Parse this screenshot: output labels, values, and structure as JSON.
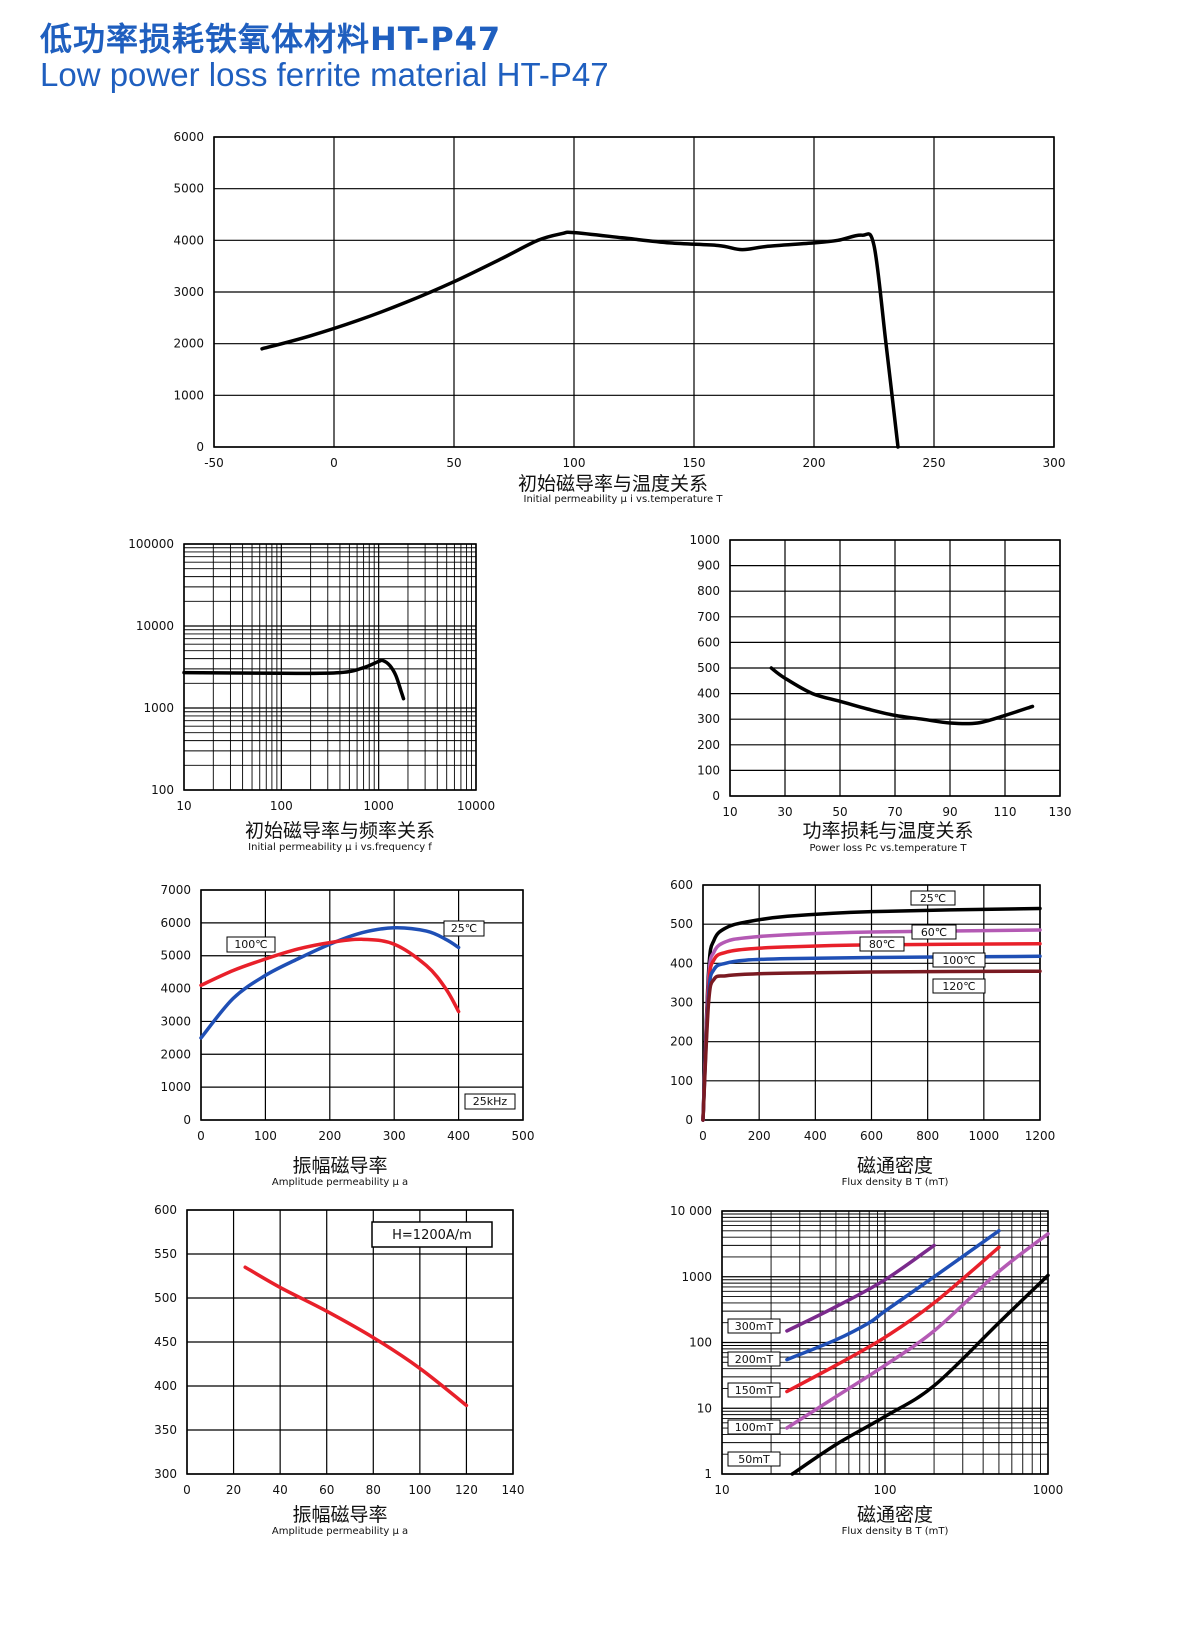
{
  "header": {
    "title_cn": "低功率损耗铁氧体材料HT-P47",
    "title_en": "Low power loss ferrite material HT-P47"
  },
  "colors": {
    "title": "#1f5fbf",
    "black": "#000000",
    "red": "#e8202a",
    "blue": "#1f4fb5",
    "purple": "#7a2a8c",
    "magenta": "#b45ab4",
    "darkred": "#7a1a22"
  },
  "chart_data": [
    {
      "id": "c1",
      "type": "line",
      "ylog": false,
      "xlog": false,
      "title_cn": "初始磁导率与温度关系",
      "title_en": "Initial permeability  μ i vs.temperature T",
      "xlim": [
        -50,
        300
      ],
      "ylim": [
        0,
        6000
      ],
      "xticks": [
        -50,
        0,
        50,
        100,
        150,
        200,
        250,
        300
      ],
      "xtick_labels": [
        "-50",
        "0",
        "50",
        "100",
        "150",
        "200",
        "250",
        "300"
      ],
      "yticks": [
        0,
        1000,
        2000,
        3000,
        4000,
        5000,
        6000
      ],
      "ytick_labels": [
        "0",
        "1000",
        "2000",
        "3000",
        "4000",
        "5000",
        "6000"
      ],
      "series": [
        {
          "name": "μi",
          "color": "#000000",
          "points": [
            [
              -30,
              1900
            ],
            [
              -10,
              2150
            ],
            [
              10,
              2450
            ],
            [
              30,
              2800
            ],
            [
              50,
              3200
            ],
            [
              70,
              3650
            ],
            [
              85,
              4000
            ],
            [
              95,
              4130
            ],
            [
              100,
              4150
            ],
            [
              120,
              4050
            ],
            [
              140,
              3950
            ],
            [
              160,
              3900
            ],
            [
              170,
              3820
            ],
            [
              180,
              3880
            ],
            [
              200,
              3950
            ],
            [
              210,
              4000
            ],
            [
              220,
              4100
            ],
            [
              225,
              3900
            ],
            [
              230,
              2000
            ],
            [
              235,
              0
            ]
          ]
        }
      ]
    },
    {
      "id": "c2",
      "type": "line",
      "ylog": true,
      "xlog": true,
      "title_cn": "初始磁导率与频率关系",
      "title_en": "Initial permeability  μ i vs.frequency f",
      "xlim": [
        10,
        10000
      ],
      "ylim": [
        100,
        100000
      ],
      "xticks": [
        10,
        100,
        1000,
        10000
      ],
      "xtick_labels": [
        "10",
        "100",
        "1000",
        "10000"
      ],
      "yticks": [
        100,
        1000,
        10000,
        100000
      ],
      "ytick_labels": [
        "100",
        "1000",
        "10000",
        "100000"
      ],
      "series": [
        {
          "name": "μi",
          "color": "#000000",
          "points": [
            [
              10,
              2700
            ],
            [
              100,
              2650
            ],
            [
              400,
              2700
            ],
            [
              700,
              3100
            ],
            [
              1000,
              3700
            ],
            [
              1100,
              3800
            ],
            [
              1300,
              3300
            ],
            [
              1500,
              2500
            ],
            [
              1700,
              1600
            ],
            [
              1800,
              1300
            ]
          ]
        }
      ]
    },
    {
      "id": "c3",
      "type": "line",
      "ylog": false,
      "xlog": false,
      "title_cn": "功率损耗与温度关系",
      "title_en": "Power loss Pc vs.temperature T",
      "xlim": [
        10,
        130
      ],
      "ylim": [
        0,
        1000
      ],
      "xticks": [
        10,
        30,
        50,
        70,
        90,
        110,
        130
      ],
      "xtick_labels": [
        "10",
        "30",
        "50",
        "70",
        "90",
        "110",
        "130"
      ],
      "yticks": [
        0,
        100,
        200,
        300,
        400,
        500,
        600,
        700,
        800,
        900,
        1000
      ],
      "ytick_labels": [
        "0",
        "100",
        "200",
        "300",
        "400",
        "500",
        "600",
        "700",
        "800",
        "900",
        "1000"
      ],
      "series": [
        {
          "name": "Pc",
          "color": "#000000",
          "points": [
            [
              25,
              500
            ],
            [
              30,
              460
            ],
            [
              40,
              400
            ],
            [
              50,
              370
            ],
            [
              60,
              340
            ],
            [
              70,
              315
            ],
            [
              80,
              300
            ],
            [
              90,
              285
            ],
            [
              100,
              285
            ],
            [
              110,
              315
            ],
            [
              120,
              350
            ]
          ]
        }
      ]
    },
    {
      "id": "c4",
      "type": "line",
      "ylog": false,
      "xlog": false,
      "title_cn": "振幅磁导率",
      "title_en": "Amplitude permeability  μ a",
      "xlim": [
        0,
        500
      ],
      "ylim": [
        0,
        7000
      ],
      "xticks": [
        0,
        100,
        200,
        300,
        400,
        500
      ],
      "xtick_labels": [
        "0",
        "100",
        "200",
        "300",
        "400",
        "500"
      ],
      "yticks": [
        0,
        1000,
        2000,
        3000,
        4000,
        5000,
        6000,
        7000
      ],
      "ytick_labels": [
        "0",
        "1000",
        "2000",
        "3000",
        "4000",
        "5000",
        "6000",
        "7000"
      ],
      "series": [
        {
          "name": "25℃",
          "color": "#1f4fb5",
          "points": [
            [
              0,
              2500
            ],
            [
              50,
              3700
            ],
            [
              100,
              4400
            ],
            [
              150,
              4900
            ],
            [
              200,
              5350
            ],
            [
              250,
              5700
            ],
            [
              300,
              5850
            ],
            [
              350,
              5750
            ],
            [
              380,
              5500
            ],
            [
              400,
              5250
            ]
          ]
        },
        {
          "name": "100℃",
          "color": "#e8202a",
          "points": [
            [
              0,
              4100
            ],
            [
              50,
              4550
            ],
            [
              100,
              4900
            ],
            [
              150,
              5200
            ],
            [
              200,
              5400
            ],
            [
              250,
              5500
            ],
            [
              300,
              5350
            ],
            [
              350,
              4700
            ],
            [
              380,
              4000
            ],
            [
              400,
              3300
            ]
          ]
        }
      ],
      "annotations": [
        "100℃",
        "25℃",
        "25kHz"
      ]
    },
    {
      "id": "c5",
      "type": "line",
      "ylog": false,
      "xlog": false,
      "title_cn": "磁通密度",
      "title_en": "Flux density B T (mT)",
      "xlim": [
        0,
        1200
      ],
      "ylim": [
        0,
        600
      ],
      "xticks": [
        0,
        200,
        400,
        600,
        800,
        1000,
        1200
      ],
      "xtick_labels": [
        "0",
        "200",
        "400",
        "600",
        "800",
        "1000",
        "1200"
      ],
      "yticks": [
        0,
        100,
        200,
        300,
        400,
        500,
        600
      ],
      "ytick_labels": [
        "0",
        "100",
        "200",
        "300",
        "400",
        "500",
        "600"
      ],
      "series": [
        {
          "name": "25℃",
          "color": "#000000",
          "points": [
            [
              0,
              0
            ],
            [
              20,
              380
            ],
            [
              40,
              460
            ],
            [
              80,
              490
            ],
            [
              150,
              505
            ],
            [
              300,
              520
            ],
            [
              600,
              532
            ],
            [
              1200,
              540
            ]
          ]
        },
        {
          "name": "60℃",
          "color": "#b45ab4",
          "points": [
            [
              0,
              0
            ],
            [
              20,
              360
            ],
            [
              40,
              430
            ],
            [
              80,
              455
            ],
            [
              150,
              465
            ],
            [
              300,
              473
            ],
            [
              600,
              480
            ],
            [
              1200,
              485
            ]
          ]
        },
        {
          "name": "80℃",
          "color": "#e8202a",
          "points": [
            [
              0,
              0
            ],
            [
              20,
              340
            ],
            [
              40,
              410
            ],
            [
              80,
              428
            ],
            [
              150,
              436
            ],
            [
              300,
              442
            ],
            [
              600,
              447
            ],
            [
              1200,
              450
            ]
          ]
        },
        {
          "name": "100℃",
          "color": "#1f4fb5",
          "points": [
            [
              0,
              0
            ],
            [
              20,
              320
            ],
            [
              40,
              385
            ],
            [
              80,
              400
            ],
            [
              150,
              408
            ],
            [
              300,
              412
            ],
            [
              600,
              415
            ],
            [
              1200,
              418
            ]
          ]
        },
        {
          "name": "120℃",
          "color": "#7a1a22",
          "points": [
            [
              0,
              0
            ],
            [
              20,
              300
            ],
            [
              40,
              360
            ],
            [
              80,
              368
            ],
            [
              150,
              372
            ],
            [
              300,
              375
            ],
            [
              600,
              378
            ],
            [
              1200,
              380
            ]
          ]
        }
      ],
      "annotations": [
        "25℃",
        "60℃",
        "80℃",
        "100℃",
        "120℃"
      ]
    },
    {
      "id": "c6",
      "type": "line",
      "ylog": false,
      "xlog": false,
      "title_cn": "振幅磁导率",
      "title_en": "Amplitude permeability  μ a",
      "xlim": [
        0,
        140
      ],
      "ylim": [
        300,
        600
      ],
      "xticks": [
        0,
        20,
        40,
        60,
        80,
        100,
        120,
        140
      ],
      "xtick_labels": [
        "0",
        "20",
        "40",
        "60",
        "80",
        "100",
        "120",
        "140"
      ],
      "yticks": [
        300,
        350,
        400,
        450,
        500,
        550,
        600
      ],
      "ytick_labels": [
        "300",
        "350",
        "400",
        "450",
        "500",
        "550",
        "600"
      ],
      "series": [
        {
          "name": "μa",
          "color": "#e8202a",
          "points": [
            [
              25,
              535
            ],
            [
              40,
              512
            ],
            [
              60,
              485
            ],
            [
              80,
              455
            ],
            [
              100,
              420
            ],
            [
              120,
              378
            ]
          ]
        }
      ],
      "annotations": [
        "H=1200A/m"
      ]
    },
    {
      "id": "c7",
      "type": "line",
      "ylog": true,
      "xlog": true,
      "title_cn": "磁通密度",
      "title_en": "Flux density B T (mT)",
      "xlim": [
        10,
        1000
      ],
      "ylim": [
        1,
        10000
      ],
      "xticks": [
        10,
        100,
        1000
      ],
      "xtick_labels": [
        "10",
        "100",
        "1000"
      ],
      "yticks": [
        1,
        10,
        100,
        1000,
        10000
      ],
      "ytick_labels": [
        "1",
        "10",
        "100",
        "1000",
        "10 000"
      ],
      "series": [
        {
          "name": "300mT",
          "color": "#7a2a8c",
          "points": [
            [
              25,
              150
            ],
            [
              50,
              350
            ],
            [
              100,
              900
            ],
            [
              200,
              3000
            ]
          ]
        },
        {
          "name": "200mT",
          "color": "#1f4fb5",
          "points": [
            [
              25,
              55
            ],
            [
              50,
              110
            ],
            [
              80,
              200
            ],
            [
              100,
              300
            ],
            [
              200,
              1000
            ],
            [
              500,
              5000
            ]
          ]
        },
        {
          "name": "150mT",
          "color": "#e8202a",
          "points": [
            [
              25,
              18
            ],
            [
              50,
              45
            ],
            [
              100,
              120
            ],
            [
              200,
              400
            ],
            [
              500,
              2800
            ]
          ]
        },
        {
          "name": "100mT",
          "color": "#b45ab4",
          "points": [
            [
              25,
              5
            ],
            [
              50,
              15
            ],
            [
              100,
              45
            ],
            [
              200,
              150
            ],
            [
              500,
              1200
            ],
            [
              1000,
              4500
            ]
          ]
        },
        {
          "name": "50mT",
          "color": "#000000",
          "points": [
            [
              27,
              1
            ],
            [
              50,
              2.8
            ],
            [
              100,
              7.5
            ],
            [
              200,
              22
            ],
            [
              500,
              200
            ],
            [
              1000,
              1050
            ]
          ]
        }
      ],
      "annotations": [
        "300mT",
        "200mT",
        "150mT",
        "100mT",
        "50mT"
      ]
    }
  ]
}
